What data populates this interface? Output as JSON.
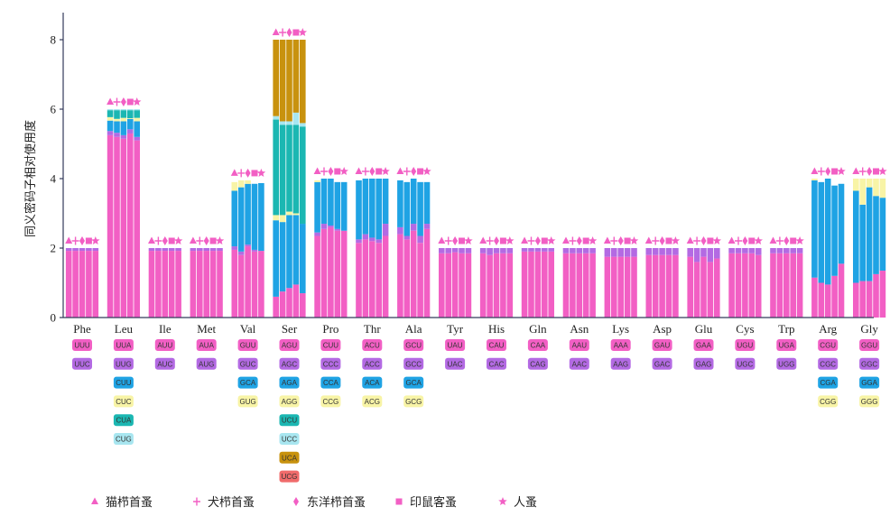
{
  "chart_data": {
    "type": "bar",
    "ylabel": "同义密码子相对使用度",
    "ylim": [
      0,
      8
    ],
    "yticks": [
      "0",
      "2",
      "4",
      "6",
      "8"
    ],
    "grid": false,
    "legend_position": "bottom-left",
    "species": [
      "猫栉首蚤",
      "犬栉首蚤",
      "东洋栉首蚤",
      "印鼠客蚤",
      "人蚤"
    ],
    "legend": [
      {
        "label": "猫栉首蚤",
        "marker": "triangle"
      },
      {
        "label": "犬栉首蚤",
        "marker": "plus"
      },
      {
        "label": "东洋栉首蚤",
        "marker": "diamond"
      },
      {
        "label": "印鼠客蚤",
        "marker": "square"
      },
      {
        "label": "人蚤",
        "marker": "star"
      }
    ],
    "codon_colors": [
      "#f25fc4",
      "#b36ae3",
      "#1fa3e4",
      "#f8f4a6",
      "#1bb7b2",
      "#a8e6f0",
      "#c8920e",
      "#f06b6b"
    ],
    "marker_color": "#f25fc4",
    "amino_acids": [
      {
        "name": "Phe",
        "codons": [
          "UUU",
          "UUC"
        ],
        "values": [
          [
            1.92,
            0.08
          ],
          [
            1.92,
            0.08
          ],
          [
            1.92,
            0.08
          ],
          [
            1.92,
            0.08
          ],
          [
            1.92,
            0.08
          ]
        ]
      },
      {
        "name": "Leu",
        "codons": [
          "UUA",
          "UUG",
          "CUU",
          "CUC",
          "CUA",
          "CUG"
        ],
        "values": [
          [
            5.25,
            0.12,
            0.3,
            0.1,
            0.2,
            0.03
          ],
          [
            5.2,
            0.12,
            0.33,
            0.07,
            0.25,
            0.03
          ],
          [
            5.15,
            0.1,
            0.4,
            0.1,
            0.22,
            0.03
          ],
          [
            5.3,
            0.12,
            0.3,
            0.02,
            0.23,
            0.03
          ],
          [
            5.1,
            0.1,
            0.45,
            0.1,
            0.22,
            0.03
          ]
        ]
      },
      {
        "name": "Ile",
        "codons": [
          "AUU",
          "AUC"
        ],
        "values": [
          [
            1.92,
            0.08
          ],
          [
            1.92,
            0.08
          ],
          [
            1.92,
            0.08
          ],
          [
            1.92,
            0.08
          ],
          [
            1.92,
            0.08
          ]
        ]
      },
      {
        "name": "Met",
        "codons": [
          "AUA",
          "AUG"
        ],
        "values": [
          [
            1.92,
            0.08
          ],
          [
            1.92,
            0.08
          ],
          [
            1.92,
            0.08
          ],
          [
            1.92,
            0.08
          ],
          [
            1.92,
            0.08
          ]
        ]
      },
      {
        "name": "Val",
        "codons": [
          "GUU",
          "GUC",
          "GCA",
          "GUG"
        ],
        "values": [
          [
            1.95,
            0.1,
            1.6,
            0.25
          ],
          [
            1.8,
            0.1,
            1.85,
            0.2
          ],
          [
            2.05,
            0.05,
            1.75,
            0.1
          ],
          [
            1.9,
            0.05,
            1.9,
            0.0
          ],
          [
            1.92,
            0.0,
            1.95,
            0.0
          ]
        ]
      },
      {
        "name": "Ser",
        "codons": [
          "AGU",
          "AGC",
          "AGA",
          "AGG",
          "UCU",
          "UCC",
          "UCA",
          "UCG"
        ],
        "values": [
          [
            0.6,
            0.0,
            2.2,
            0.15,
            2.75,
            0.1,
            2.2,
            0.0
          ],
          [
            0.75,
            0.0,
            2.0,
            0.2,
            2.6,
            0.1,
            2.35,
            0.0
          ],
          [
            0.85,
            0.0,
            2.1,
            0.1,
            2.5,
            0.1,
            2.35,
            0.0
          ],
          [
            0.95,
            0.0,
            2.0,
            0.05,
            2.55,
            0.35,
            2.1,
            0.0
          ],
          [
            0.7,
            0.0,
            2.0,
            0.0,
            2.8,
            0.1,
            2.4,
            0.0
          ]
        ]
      },
      {
        "name": "Pro",
        "codons": [
          "CUU",
          "CCC",
          "CCA",
          "CCG"
        ],
        "values": [
          [
            2.35,
            0.1,
            1.45,
            0.05
          ],
          [
            2.55,
            0.15,
            1.3,
            0.0
          ],
          [
            2.6,
            0.05,
            1.35,
            0.0
          ],
          [
            2.5,
            0.05,
            1.35,
            0.0
          ],
          [
            2.5,
            0.0,
            1.4,
            0.0
          ]
        ]
      },
      {
        "name": "Thr",
        "codons": [
          "ACU",
          "ACC",
          "ACA",
          "ACG"
        ],
        "values": [
          [
            2.15,
            0.1,
            1.7,
            0.0
          ],
          [
            2.25,
            0.15,
            1.6,
            0.0
          ],
          [
            2.2,
            0.1,
            1.7,
            0.0
          ],
          [
            2.15,
            0.1,
            1.75,
            0.0
          ],
          [
            2.35,
            0.35,
            1.3,
            0.0
          ]
        ]
      },
      {
        "name": "Ala",
        "codons": [
          "GCU",
          "GCC",
          "GCA",
          "GCG"
        ],
        "values": [
          [
            2.4,
            0.2,
            1.35,
            0.0
          ],
          [
            2.25,
            0.1,
            1.55,
            0.0
          ],
          [
            2.5,
            0.2,
            1.3,
            0.0
          ],
          [
            2.15,
            0.2,
            1.55,
            0.0
          ],
          [
            2.55,
            0.15,
            1.2,
            0.0
          ]
        ]
      },
      {
        "name": "Tyr",
        "codons": [
          "UAU",
          "UAC"
        ],
        "values": [
          [
            1.85,
            0.15
          ],
          [
            1.85,
            0.15
          ],
          [
            1.88,
            0.12
          ],
          [
            1.85,
            0.15
          ],
          [
            1.85,
            0.15
          ]
        ]
      },
      {
        "name": "His",
        "codons": [
          "CAU",
          "CAC"
        ],
        "values": [
          [
            1.85,
            0.15
          ],
          [
            1.8,
            0.2
          ],
          [
            1.85,
            0.15
          ],
          [
            1.85,
            0.15
          ],
          [
            1.85,
            0.15
          ]
        ]
      },
      {
        "name": "Gln",
        "codons": [
          "CAA",
          "CAG"
        ],
        "values": [
          [
            1.9,
            0.1
          ],
          [
            1.9,
            0.1
          ],
          [
            1.9,
            0.1
          ],
          [
            1.9,
            0.1
          ],
          [
            1.9,
            0.1
          ]
        ]
      },
      {
        "name": "Asn",
        "codons": [
          "AAU",
          "AAC"
        ],
        "values": [
          [
            1.85,
            0.15
          ],
          [
            1.85,
            0.15
          ],
          [
            1.85,
            0.15
          ],
          [
            1.85,
            0.15
          ],
          [
            1.85,
            0.15
          ]
        ]
      },
      {
        "name": "Lys",
        "codons": [
          "AAA",
          "AAG"
        ],
        "values": [
          [
            1.75,
            0.25
          ],
          [
            1.75,
            0.25
          ],
          [
            1.75,
            0.25
          ],
          [
            1.75,
            0.25
          ],
          [
            1.75,
            0.25
          ]
        ]
      },
      {
        "name": "Asp",
        "codons": [
          "GAU",
          "GAC"
        ],
        "values": [
          [
            1.8,
            0.2
          ],
          [
            1.8,
            0.2
          ],
          [
            1.8,
            0.2
          ],
          [
            1.8,
            0.2
          ],
          [
            1.8,
            0.2
          ]
        ]
      },
      {
        "name": "Glu",
        "codons": [
          "GAA",
          "GAG"
        ],
        "values": [
          [
            1.75,
            0.25
          ],
          [
            1.6,
            0.4
          ],
          [
            1.75,
            0.25
          ],
          [
            1.6,
            0.4
          ],
          [
            1.7,
            0.3
          ]
        ]
      },
      {
        "name": "Cys",
        "codons": [
          "UGU",
          "UGC"
        ],
        "values": [
          [
            1.85,
            0.15
          ],
          [
            1.85,
            0.15
          ],
          [
            1.85,
            0.15
          ],
          [
            1.85,
            0.15
          ],
          [
            1.8,
            0.2
          ]
        ]
      },
      {
        "name": "Trp",
        "codons": [
          "UGA",
          "UGG"
        ],
        "values": [
          [
            1.85,
            0.15
          ],
          [
            1.85,
            0.15
          ],
          [
            1.85,
            0.15
          ],
          [
            1.85,
            0.15
          ],
          [
            1.85,
            0.15
          ]
        ]
      },
      {
        "name": "Arg",
        "codons": [
          "CGU",
          "CGC",
          "CGA",
          "CGG"
        ],
        "values": [
          [
            1.15,
            0.0,
            2.8,
            0.05
          ],
          [
            1.0,
            0.0,
            2.9,
            0.0
          ],
          [
            0.95,
            0.0,
            3.05,
            0.0
          ],
          [
            1.2,
            0.0,
            2.6,
            0.0
          ],
          [
            1.55,
            0.0,
            2.3,
            0.0
          ]
        ]
      },
      {
        "name": "Gly",
        "codons": [
          "GGU",
          "GGC",
          "GGA",
          "GGG"
        ],
        "values": [
          [
            1.0,
            0.0,
            2.65,
            0.35
          ],
          [
            1.05,
            0.0,
            2.2,
            0.75
          ],
          [
            1.05,
            0.0,
            2.7,
            0.25
          ],
          [
            1.25,
            0.0,
            2.25,
            0.5
          ],
          [
            1.35,
            0.0,
            2.1,
            0.55
          ]
        ]
      }
    ]
  }
}
